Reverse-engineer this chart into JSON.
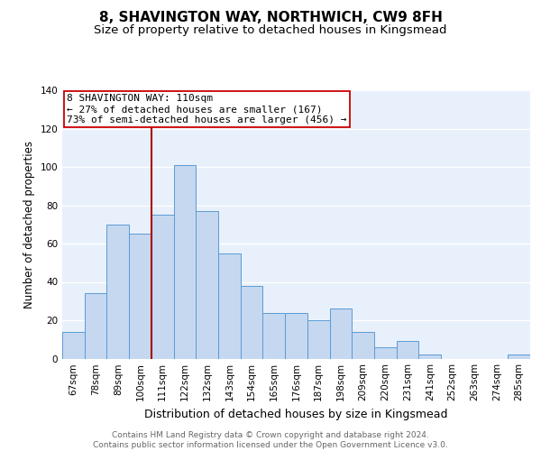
{
  "title": "8, SHAVINGTON WAY, NORTHWICH, CW9 8FH",
  "subtitle": "Size of property relative to detached houses in Kingsmead",
  "xlabel": "Distribution of detached houses by size in Kingsmead",
  "ylabel": "Number of detached properties",
  "categories": [
    "67sqm",
    "78sqm",
    "89sqm",
    "100sqm",
    "111sqm",
    "122sqm",
    "132sqm",
    "143sqm",
    "154sqm",
    "165sqm",
    "176sqm",
    "187sqm",
    "198sqm",
    "209sqm",
    "220sqm",
    "231sqm",
    "241sqm",
    "252sqm",
    "263sqm",
    "274sqm",
    "285sqm"
  ],
  "values": [
    14,
    34,
    70,
    65,
    75,
    101,
    77,
    55,
    38,
    24,
    24,
    20,
    26,
    14,
    6,
    9,
    2,
    0,
    0,
    0,
    2
  ],
  "bar_color": "#c5d8f0",
  "bar_edge_color": "#5b9bd5",
  "property_line_index": 4,
  "property_line_color": "#aa0000",
  "annotation_text": "8 SHAVINGTON WAY: 110sqm\n← 27% of detached houses are smaller (167)\n73% of semi-detached houses are larger (456) →",
  "annotation_box_color": "white",
  "annotation_box_edge_color": "#cc0000",
  "ylim": [
    0,
    140
  ],
  "yticks": [
    0,
    20,
    40,
    60,
    80,
    100,
    120,
    140
  ],
  "background_color": "#e8f0fb",
  "grid_color": "white",
  "footer_text": "Contains HM Land Registry data © Crown copyright and database right 2024.\nContains public sector information licensed under the Open Government Licence v3.0.",
  "title_fontsize": 11,
  "subtitle_fontsize": 9.5,
  "xlabel_fontsize": 9,
  "ylabel_fontsize": 8.5,
  "tick_fontsize": 7.5,
  "annotation_fontsize": 8,
  "footer_fontsize": 6.5
}
